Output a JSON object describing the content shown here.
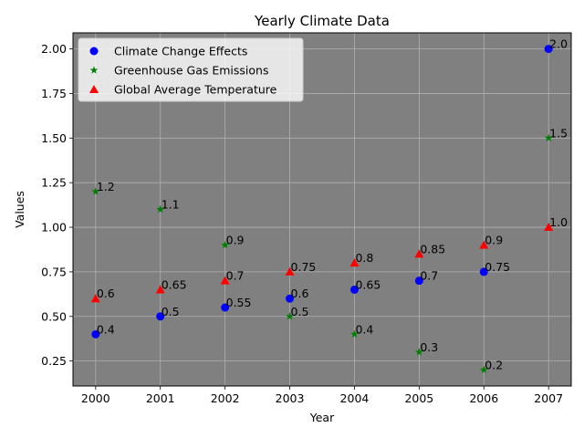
{
  "chart_data": {
    "type": "scatter",
    "title": "Yearly Climate Data",
    "xlabel": "Year",
    "ylabel": "Values",
    "x": [
      2000,
      2001,
      2002,
      2003,
      2004,
      2005,
      2006,
      2007
    ],
    "xlim": [
      1999.65,
      2007.35
    ],
    "ylim": [
      0.11,
      2.09
    ],
    "yticks": [
      0.25,
      0.5,
      0.75,
      1.0,
      1.25,
      1.5,
      1.75,
      2.0
    ],
    "grid": true,
    "legend_position": "top-left",
    "plot_background": "#808080",
    "series": [
      {
        "name": "Climate Change Effects",
        "marker": "circle",
        "color": "#0000ff",
        "values": [
          0.4,
          0.5,
          0.55,
          0.6,
          0.65,
          0.7,
          0.75,
          2.0
        ],
        "labels": [
          "0.4",
          "0.5",
          "0.55",
          "0.6",
          "0.65",
          "0.7",
          "0.75",
          "2.0"
        ]
      },
      {
        "name": "Greenhouse Gas Emissions",
        "marker": "star",
        "color": "#008000",
        "values": [
          1.2,
          1.1,
          0.9,
          0.5,
          0.4,
          0.3,
          0.2,
          1.5
        ],
        "labels": [
          "1.2",
          "1.1",
          "0.9",
          "0.5",
          "0.4",
          "0.3",
          "0.2",
          "1.5"
        ]
      },
      {
        "name": "Global Average Temperature",
        "marker": "triangle",
        "color": "#ff0000",
        "values": [
          0.6,
          0.65,
          0.7,
          0.75,
          0.8,
          0.85,
          0.9,
          1.0
        ],
        "labels": [
          "0.6",
          "0.65",
          "0.7",
          "0.75",
          "0.8",
          "0.85",
          "0.9",
          "1.0"
        ]
      }
    ]
  }
}
